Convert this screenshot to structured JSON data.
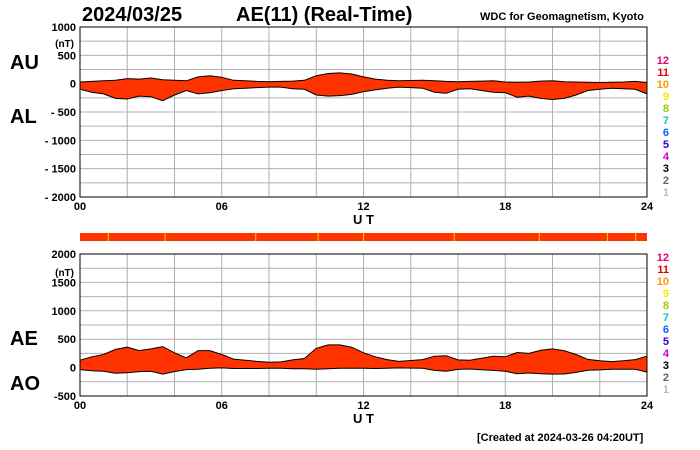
{
  "header": {
    "date": "2024/03/25",
    "title": "AE(11) (Real-Time)",
    "source": "WDC for Geomagnetism, Kyoto",
    "created": "[Created at 2024-03-26 04:20UT]"
  },
  "chart_data": [
    {
      "type": "area",
      "panel": "top",
      "series_labels": [
        "AU",
        "AL"
      ],
      "unit_label": "(nT)",
      "xlabel": "U T",
      "x_ticks": [
        "00",
        "06",
        "12",
        "18",
        "24"
      ],
      "y_ticks": [
        "1000",
        "500",
        "0",
        "- 500",
        "- 1000",
        "- 1500",
        "- 2000"
      ],
      "xlim": [
        0,
        24
      ],
      "ylim": [
        -2000,
        1000
      ],
      "grid": true,
      "fill_color": "#ff3300",
      "x": [
        0,
        0.5,
        1,
        1.5,
        2,
        2.5,
        3,
        3.5,
        4,
        4.5,
        5,
        5.5,
        6,
        6.5,
        7,
        7.5,
        8,
        8.5,
        9,
        9.5,
        10,
        10.5,
        11,
        11.5,
        12,
        12.5,
        13,
        13.5,
        14,
        14.5,
        15,
        15.5,
        16,
        16.5,
        17,
        17.5,
        18,
        18.5,
        19,
        19.5,
        20,
        20.5,
        21,
        21.5,
        22,
        22.5,
        23,
        23.5,
        24
      ],
      "series": [
        {
          "name": "AU",
          "values": [
            30,
            40,
            50,
            60,
            90,
            80,
            100,
            70,
            60,
            50,
            120,
            140,
            110,
            60,
            50,
            40,
            35,
            40,
            45,
            60,
            140,
            180,
            190,
            170,
            120,
            80,
            60,
            50,
            55,
            60,
            50,
            40,
            35,
            40,
            45,
            50,
            30,
            25,
            30,
            45,
            50,
            35,
            30,
            25,
            20,
            25,
            30,
            40,
            20
          ]
        },
        {
          "name": "AL",
          "values": [
            -100,
            -150,
            -180,
            -260,
            -270,
            -220,
            -230,
            -300,
            -200,
            -120,
            -180,
            -160,
            -120,
            -90,
            -80,
            -70,
            -60,
            -60,
            -90,
            -100,
            -200,
            -220,
            -210,
            -190,
            -140,
            -110,
            -80,
            -60,
            -70,
            -80,
            -150,
            -170,
            -100,
            -90,
            -120,
            -150,
            -160,
            -240,
            -220,
            -260,
            -280,
            -260,
            -200,
            -120,
            -100,
            -80,
            -90,
            -100,
            -180
          ]
        }
      ]
    },
    {
      "type": "area",
      "panel": "bottom",
      "series_labels": [
        "AE",
        "AO"
      ],
      "unit_label": "(nT)",
      "xlabel": "U T",
      "x_ticks": [
        "00",
        "06",
        "12",
        "18",
        "24"
      ],
      "y_ticks": [
        "2000",
        "1500",
        "1000",
        "500",
        "0",
        "-500"
      ],
      "xlim": [
        0,
        24
      ],
      "ylim": [
        -500,
        2000
      ],
      "grid": true,
      "fill_color": "#ff3300",
      "x": [
        0,
        0.5,
        1,
        1.5,
        2,
        2.5,
        3,
        3.5,
        4,
        4.5,
        5,
        5.5,
        6,
        6.5,
        7,
        7.5,
        8,
        8.5,
        9,
        9.5,
        10,
        10.5,
        11,
        11.5,
        12,
        12.5,
        13,
        13.5,
        14,
        14.5,
        15,
        15.5,
        16,
        16.5,
        17,
        17.5,
        18,
        18.5,
        19,
        19.5,
        20,
        20.5,
        21,
        21.5,
        22,
        22.5,
        23,
        23.5,
        24
      ],
      "series": [
        {
          "name": "AE",
          "values": [
            130,
            190,
            230,
            320,
            360,
            300,
            330,
            370,
            260,
            170,
            300,
            300,
            230,
            150,
            130,
            110,
            95,
            100,
            135,
            160,
            340,
            400,
            400,
            360,
            260,
            190,
            140,
            110,
            125,
            140,
            200,
            210,
            135,
            130,
            165,
            200,
            190,
            265,
            250,
            305,
            330,
            295,
            230,
            145,
            120,
            105,
            120,
            140,
            200
          ]
        },
        {
          "name": "AO",
          "values": [
            -35,
            -55,
            -65,
            -100,
            -90,
            -70,
            -65,
            -115,
            -70,
            -35,
            -30,
            -10,
            -5,
            -15,
            -15,
            -15,
            -12,
            -10,
            -22,
            -20,
            -30,
            -20,
            -10,
            -10,
            -10,
            -15,
            -10,
            -5,
            -8,
            -10,
            -50,
            -65,
            -32,
            -25,
            -38,
            -50,
            -65,
            -108,
            -95,
            -108,
            -115,
            -112,
            -85,
            -48,
            -40,
            -28,
            -30,
            -30,
            -80
          ]
        }
      ]
    }
  ],
  "legend": {
    "numbers": [
      "12",
      "11",
      "10",
      "9",
      "8",
      "7",
      "6",
      "5",
      "4",
      "3",
      "2",
      "1"
    ],
    "colors": [
      "#e6007e",
      "#e60000",
      "#ff9900",
      "#ffe600",
      "#99cc00",
      "#00cccc",
      "#0066ff",
      "#3300cc",
      "#cc00cc",
      "#000000",
      "#666666",
      "#bbbbbb"
    ]
  },
  "station_bar": {
    "color": "#ff3300",
    "marker_color": "#ffcc00"
  }
}
